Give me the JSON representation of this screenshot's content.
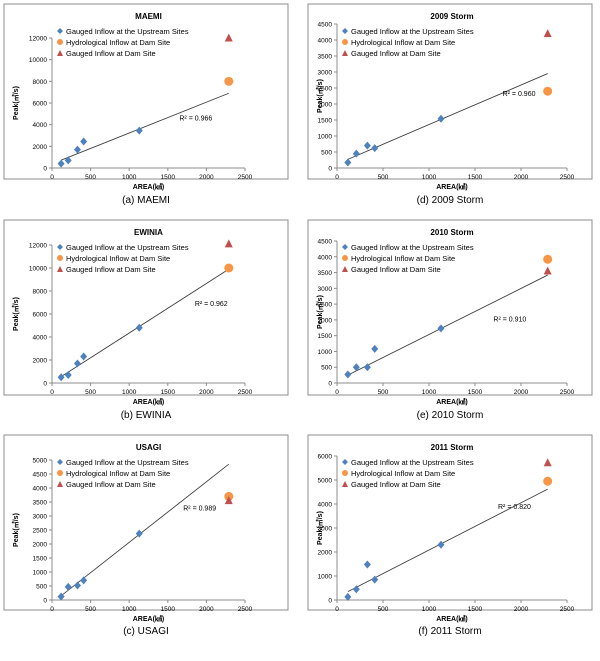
{
  "legend_labels": {
    "upstream": "Gauged Inflow at the Upstream Sites",
    "hydro": "Hydrological Inflow at Dam Site",
    "dam": "Gauged Inflow at Dam Site"
  },
  "colors": {
    "upstream": "#4f81bd",
    "hydro": "#f79646",
    "dam": "#c0504d",
    "trend": "#404040",
    "frame": "#8c8c8c"
  },
  "chart_data": [
    {
      "type": "scatter",
      "title": "MAEMI",
      "caption": "(a) MAEMI",
      "xlabel": "AREA(㎢)",
      "ylabel": "Peak(㎥/s)",
      "xlim": [
        0,
        2500
      ],
      "xticks": [
        0,
        500,
        1000,
        1500,
        2000,
        2500
      ],
      "ylim": [
        0,
        12000
      ],
      "yticks": [
        0,
        2000,
        4000,
        6000,
        8000,
        10000,
        12000
      ],
      "upstream": [
        [
          118,
          400
        ],
        [
          210,
          700
        ],
        [
          330,
          1700
        ],
        [
          410,
          2450
        ],
        [
          1130,
          3450
        ]
      ],
      "hydro": [
        2290,
        8000
      ],
      "dam": [
        2290,
        12000
      ],
      "trendline": [
        [
          118,
          720
        ],
        [
          2290,
          6900
        ]
      ],
      "r2": "R² = 0.966",
      "r2_at": [
        1650,
        4400
      ]
    },
    {
      "type": "scatter",
      "title": "EWINIA",
      "caption": "(b) EWINIA",
      "xlabel": "AREA(㎢)",
      "ylabel": "Peak(㎥/s)",
      "xlim": [
        0,
        2500
      ],
      "xticks": [
        0,
        500,
        1000,
        1500,
        2000,
        2500
      ],
      "ylim": [
        0,
        12000
      ],
      "yticks": [
        0,
        2000,
        4000,
        6000,
        8000,
        10000,
        12000
      ],
      "upstream": [
        [
          118,
          500
        ],
        [
          210,
          700
        ],
        [
          330,
          1700
        ],
        [
          410,
          2300
        ],
        [
          1130,
          4800
        ]
      ],
      "hydro": [
        2290,
        10000
      ],
      "dam": [
        2290,
        12100
      ],
      "trendline": [
        [
          118,
          550
        ],
        [
          2290,
          9900
        ]
      ],
      "r2": "R² = 0.962",
      "r2_at": [
        1850,
        6700
      ]
    },
    {
      "type": "scatter",
      "title": "USAGI",
      "caption": "(c) USAGI",
      "xlabel": "AREA(㎢)",
      "ylabel": "Peak(㎥/s)",
      "xlim": [
        0,
        2500
      ],
      "xticks": [
        0,
        500,
        1000,
        1500,
        2000,
        2500
      ],
      "ylim": [
        0,
        5000
      ],
      "yticks": [
        0,
        500,
        1000,
        1500,
        2000,
        2500,
        3000,
        3500,
        4000,
        4500,
        5000
      ],
      "upstream": [
        [
          118,
          120
        ],
        [
          210,
          470
        ],
        [
          330,
          520
        ],
        [
          410,
          700
        ],
        [
          1130,
          2370
        ]
      ],
      "hydro": [
        2290,
        3700
      ],
      "dam": [
        2290,
        3550
      ],
      "trendline": [
        [
          118,
          150
        ],
        [
          2290,
          4850
        ]
      ],
      "r2": "R² = 0.989",
      "r2_at": [
        1700,
        3200
      ]
    },
    {
      "type": "scatter",
      "title": "2009 Storm",
      "caption": "(d) 2009 Storm",
      "xlabel": "AREA(㎢)",
      "ylabel": "Peak(㎥/s)",
      "xlim": [
        0,
        2500
      ],
      "xticks": [
        0,
        500,
        1000,
        1500,
        2000,
        2500
      ],
      "ylim": [
        0,
        4500
      ],
      "yticks": [
        0,
        500,
        1000,
        1500,
        2000,
        2500,
        3000,
        3500,
        4000,
        4500
      ],
      "upstream": [
        [
          118,
          170
        ],
        [
          210,
          450
        ],
        [
          330,
          700
        ],
        [
          410,
          620
        ],
        [
          1130,
          1540
        ]
      ],
      "hydro": [
        2290,
        2400
      ],
      "dam": [
        2290,
        4200
      ],
      "trendline": [
        [
          118,
          270
        ],
        [
          2290,
          2950
        ]
      ],
      "r2": "R² = 0.960",
      "r2_at": [
        1800,
        2250
      ]
    },
    {
      "type": "scatter",
      "title": "2010 Storm",
      "caption": "(e) 2010 Storm",
      "xlabel": "AREA(㎢)",
      "ylabel": "Peak(㎥/s)",
      "xlim": [
        0,
        2500
      ],
      "xticks": [
        0,
        500,
        1000,
        1500,
        2000,
        2500
      ],
      "ylim": [
        0,
        4500
      ],
      "yticks": [
        0,
        500,
        1000,
        1500,
        2000,
        2500,
        3000,
        3500,
        4000,
        4500
      ],
      "upstream": [
        [
          118,
          270
        ],
        [
          210,
          500
        ],
        [
          330,
          500
        ],
        [
          410,
          1080
        ],
        [
          1130,
          1730
        ]
      ],
      "hydro": [
        2290,
        3920
      ],
      "dam": [
        2290,
        3550
      ],
      "trendline": [
        [
          118,
          250
        ],
        [
          2290,
          3420
        ]
      ],
      "r2": "R² = 0.910",
      "r2_at": [
        1700,
        1950
      ]
    },
    {
      "type": "scatter",
      "title": "2011 Storm",
      "caption": "(f) 2011 Storm",
      "xlabel": "AREA(㎢)",
      "ylabel": "Peak(㎥/s)",
      "xlim": [
        0,
        2500
      ],
      "xticks": [
        0,
        500,
        1000,
        1500,
        2000,
        2500
      ],
      "ylim": [
        0,
        6000
      ],
      "yticks": [
        0,
        1000,
        2000,
        3000,
        4000,
        5000,
        6000
      ],
      "upstream": [
        [
          118,
          130
        ],
        [
          210,
          450
        ],
        [
          330,
          1480
        ],
        [
          410,
          850
        ],
        [
          1130,
          2300
        ]
      ],
      "hydro": [
        2290,
        4950
      ],
      "dam": [
        2290,
        5720
      ],
      "trendline": [
        [
          118,
          350
        ],
        [
          2290,
          4620
        ]
      ],
      "r2": "R² = 0.820",
      "r2_at": [
        1750,
        3800
      ]
    }
  ]
}
